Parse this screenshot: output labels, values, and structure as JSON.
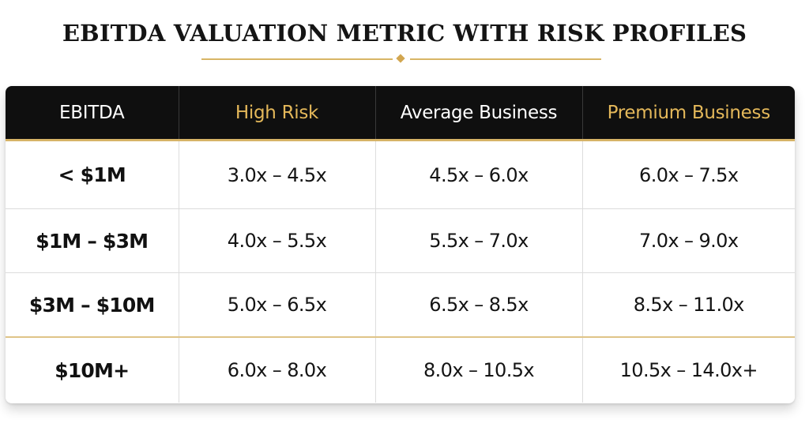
{
  "title": "EBITDA VALUATION METRIC WITH RISK PROFILES",
  "colors": {
    "accent_gold": "#d7b467",
    "header_gold_text": "#e4b85a",
    "header_bg": "#0f0f0f"
  },
  "table": {
    "headers": [
      "EBITDA",
      "High Risk",
      "Average Business",
      "Premium Business"
    ],
    "rows": [
      [
        "< $1M",
        "3.0x – 4.5x",
        "4.5x – 6.0x",
        "6.0x – 7.5x"
      ],
      [
        "$1M – $3M",
        "4.0x – 5.5x",
        "5.5x – 7.0x",
        "7.0x – 9.0x"
      ],
      [
        "$3M – $10M",
        "5.0x – 6.5x",
        "6.5x – 8.5x",
        "8.5x – 11.0x"
      ],
      [
        "$10M+",
        "6.0x – 8.0x",
        "8.0x – 10.5x",
        "10.5x – 14.0x+"
      ]
    ]
  }
}
